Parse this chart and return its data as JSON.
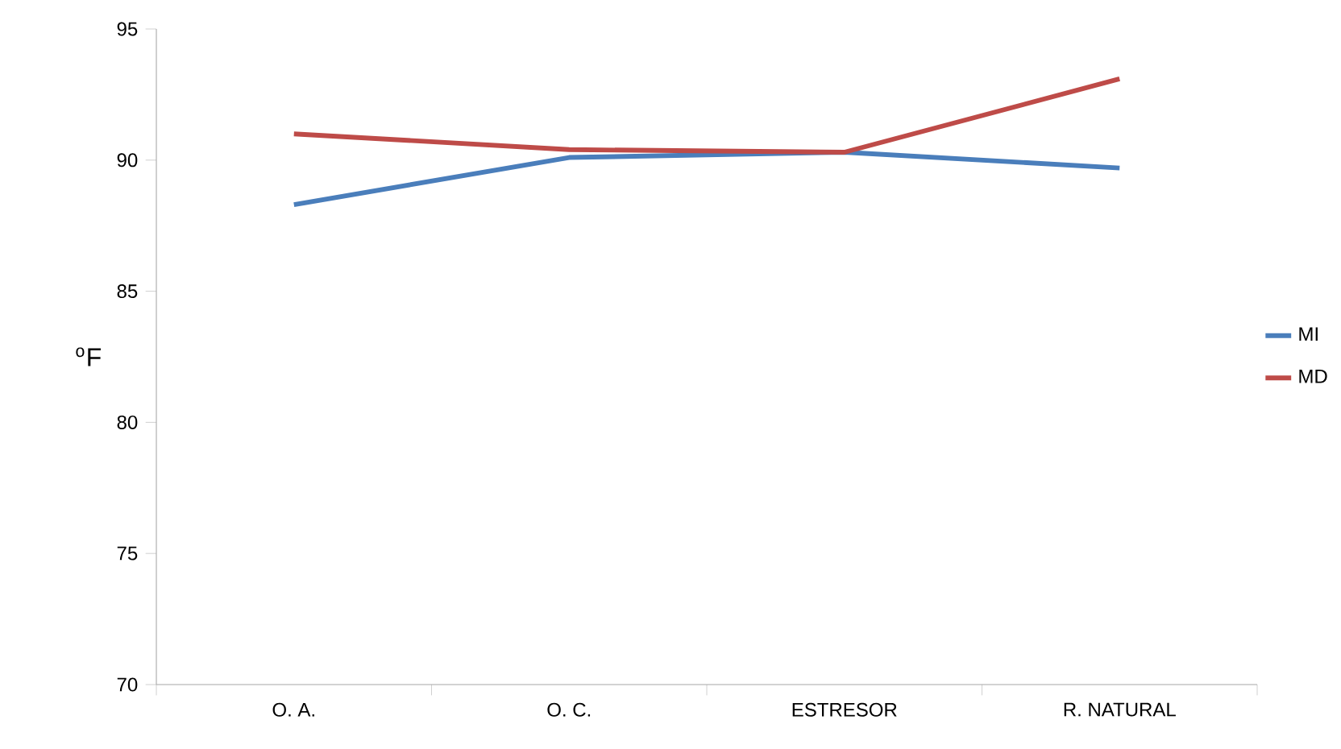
{
  "chart_data": {
    "type": "line",
    "ylabel": "$^{o}$F",
    "categories": [
      "O. A.",
      "O. C.",
      "ESTRESOR",
      "R. NATURAL"
    ],
    "series": [
      {
        "name": "MI",
        "color": "#4a7ebb",
        "values": [
          88.3,
          90.1,
          90.3,
          89.7
        ]
      },
      {
        "name": "MD",
        "color": "#be4b48",
        "values": [
          91.0,
          90.4,
          90.3,
          93.1
        ]
      }
    ],
    "ylim": [
      70,
      95
    ],
    "yticks": [
      70,
      75,
      80,
      85,
      90,
      95
    ],
    "grid": false,
    "legend": "right",
    "marker": "none",
    "line_style": "solid"
  }
}
